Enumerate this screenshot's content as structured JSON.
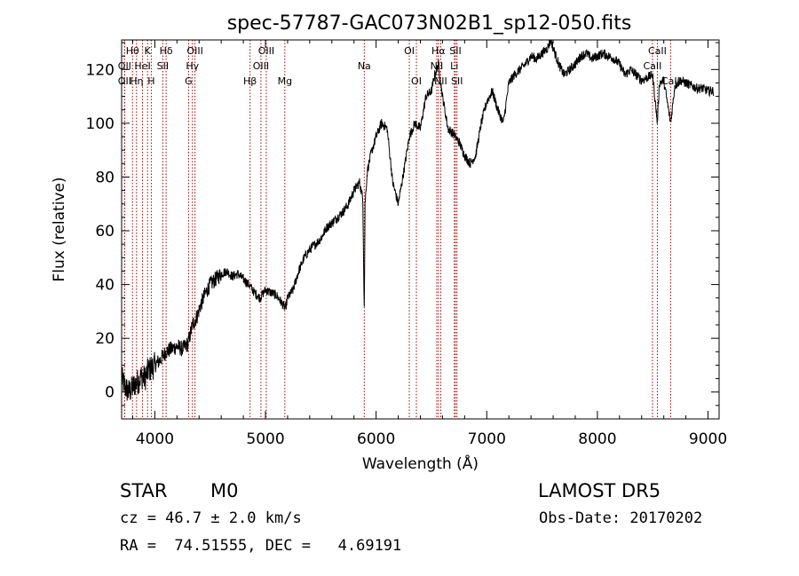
{
  "chart_data": {
    "type": "line",
    "title": "spec-57787-GAC073N02B1_sp12-050.fits",
    "xlabel": "Wavelength (Å)",
    "ylabel": "Flux (relative)",
    "xlim": [
      3700,
      9100
    ],
    "ylim": [
      -10,
      131
    ],
    "xticks": [
      4000,
      5000,
      6000,
      7000,
      8000,
      9000
    ],
    "yticks": [
      0,
      20,
      40,
      60,
      80,
      100,
      120
    ],
    "grid": false,
    "line_color": "#000000",
    "marker_color": "#aa0000",
    "series": [
      {
        "x": [
          3700,
          3730,
          3760,
          3790,
          3820,
          3850,
          3880,
          3910,
          3940,
          3970,
          4000,
          4050,
          4100,
          4150,
          4200,
          4250,
          4300,
          4340,
          4380,
          4420,
          4460,
          4500,
          4550,
          4600,
          4650,
          4700,
          4750,
          4800,
          4850,
          4900,
          4950,
          5000,
          5050,
          5100,
          5150,
          5180,
          5200,
          5250,
          5300,
          5350,
          5400,
          5450,
          5500,
          5550,
          5600,
          5650,
          5700,
          5750,
          5800,
          5850,
          5880,
          5893,
          5900,
          5920,
          5950,
          6000,
          6050,
          6100,
          6150,
          6200,
          6250,
          6300,
          6350,
          6400,
          6450,
          6500,
          6530,
          6563,
          6600,
          6650,
          6700,
          6750,
          6800,
          6850,
          6900,
          6950,
          7000,
          7050,
          7100,
          7150,
          7200,
          7250,
          7300,
          7350,
          7400,
          7450,
          7500,
          7550,
          7580,
          7600,
          7650,
          7700,
          7750,
          7800,
          7850,
          7900,
          7950,
          8000,
          8050,
          8100,
          8150,
          8200,
          8250,
          8300,
          8350,
          8400,
          8450,
          8500,
          8542,
          8560,
          8600,
          8662,
          8700,
          8750,
          8800,
          8850,
          8900,
          8950,
          9000,
          9050
        ],
        "y": [
          5,
          2,
          0,
          1,
          3,
          4,
          6,
          5,
          8,
          9,
          10,
          12,
          15,
          16,
          17,
          16,
          18,
          25,
          28,
          33,
          37,
          40,
          42,
          44,
          45,
          43,
          44,
          42,
          40,
          37,
          35,
          38,
          37,
          36,
          33,
          31,
          35,
          38,
          45,
          50,
          53,
          55,
          57,
          61,
          63,
          65,
          67,
          70,
          75,
          78,
          72,
          30,
          70,
          82,
          88,
          95,
          100,
          98,
          78,
          70,
          82,
          95,
          100,
          98,
          110,
          112,
          118,
          122,
          110,
          98,
          96,
          93,
          88,
          85,
          88,
          100,
          108,
          112,
          105,
          100,
          115,
          118,
          120,
          122,
          125,
          124,
          126,
          128,
          131,
          128,
          122,
          118,
          120,
          122,
          125,
          126,
          124,
          125,
          126,
          125,
          124,
          122,
          118,
          120,
          118,
          116,
          117,
          118,
          100,
          115,
          116,
          100,
          114,
          116,
          115,
          114,
          113,
          113,
          112,
          112
        ]
      }
    ],
    "lines": [
      {
        "label": "Hθ",
        "x": 3798,
        "row": 1
      },
      {
        "label": "OII",
        "x": 3727,
        "row": 2
      },
      {
        "label": "OII",
        "x": 3727,
        "row": 3
      },
      {
        "label": "Hη",
        "x": 3835,
        "row": 3
      },
      {
        "label": "HeI",
        "x": 3889,
        "row": 2
      },
      {
        "label": "K",
        "x": 3934,
        "row": 1
      },
      {
        "label": "H",
        "x": 3968,
        "row": 3
      },
      {
        "label": "Hδ",
        "x": 4102,
        "row": 1
      },
      {
        "label": "SII",
        "x": 4072,
        "row": 2
      },
      {
        "label": "OIII",
        "x": 4363,
        "row": 1
      },
      {
        "label": "Hγ",
        "x": 4340,
        "row": 2
      },
      {
        "label": "G",
        "x": 4305,
        "row": 3
      },
      {
        "label": "Hβ",
        "x": 4861,
        "row": 3
      },
      {
        "label": "OIII",
        "x": 5007,
        "row": 1
      },
      {
        "label": "OIII",
        "x": 4959,
        "row": 2
      },
      {
        "label": "Mg",
        "x": 5175,
        "row": 3
      },
      {
        "label": "Na",
        "x": 5893,
        "row": 2
      },
      {
        "label": "OI",
        "x": 6300,
        "row": 1
      },
      {
        "label": "OI",
        "x": 6364,
        "row": 3
      },
      {
        "label": "Hα",
        "x": 6563,
        "row": 1
      },
      {
        "label": "NII",
        "x": 6548,
        "row": 2
      },
      {
        "label": "NII",
        "x": 6584,
        "row": 3
      },
      {
        "label": "SII",
        "x": 6717,
        "row": 1
      },
      {
        "label": "Li",
        "x": 6707,
        "row": 2
      },
      {
        "label": "SII",
        "x": 6731,
        "row": 3
      },
      {
        "label": "CaII",
        "x": 8542,
        "row": 1
      },
      {
        "label": "CaII",
        "x": 8498,
        "row": 2
      },
      {
        "label": "CaII",
        "x": 8662,
        "row": 3
      }
    ]
  },
  "info": {
    "class_label": "STAR",
    "subclass": "M0",
    "survey": "LAMOST DR5",
    "cz": "cz = 46.7 ± 2.0 km/s",
    "obs_date": "Obs-Date: 20170202",
    "coords": "RA =  74.51555, DEC =   4.69191"
  }
}
